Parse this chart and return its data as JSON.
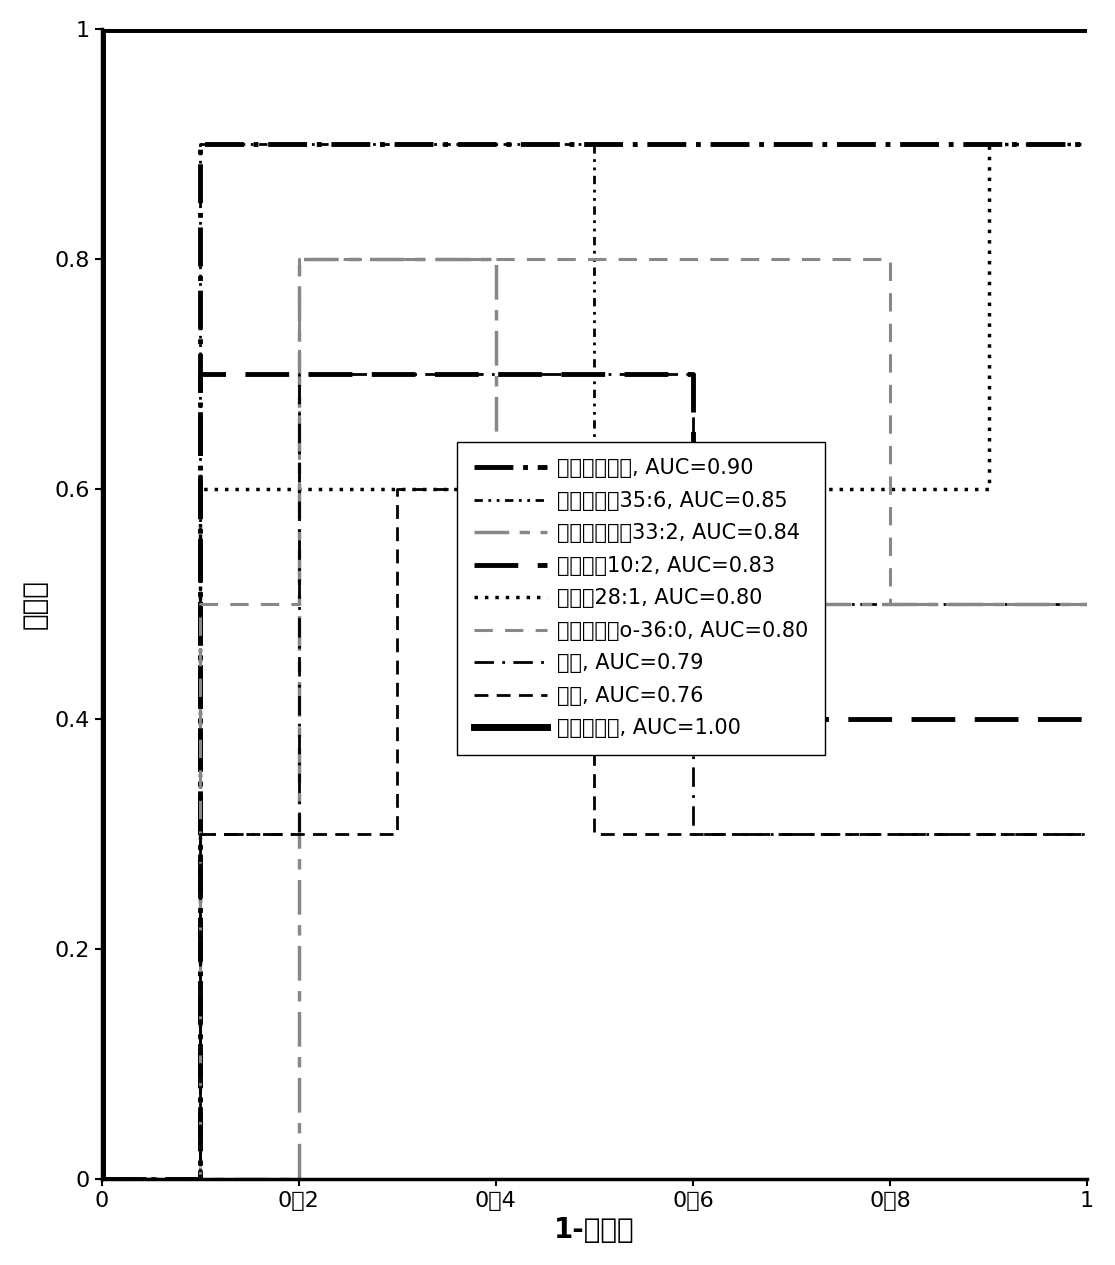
{
  "title": "",
  "xlabel": "1-特异性",
  "ylabel": "灵敏度",
  "xlim": [
    0,
    1
  ],
  "ylim": [
    0,
    1
  ],
  "xticks": [
    0,
    0.2,
    0.4,
    0.6,
    0.8,
    1
  ],
  "yticks": [
    0,
    0.2,
    0.4,
    0.6,
    0.8,
    1
  ],
  "xtick_labels": [
    "0",
    "0．2",
    "0．4",
    "0．6",
    "0．8",
    "1"
  ],
  "ytick_labels": [
    "0",
    "0.2",
    "0.4",
    "0.6",
    "0.8",
    "1"
  ],
  "curves": [
    {
      "name": "二甲基甘氨酸, AUC=0.90",
      "x": [
        0,
        0.1,
        0.1,
        1.0
      ],
      "y": [
        0,
        0,
        0.9,
        0.9
      ],
      "linestyle_tuple": [
        8,
        2,
        1,
        2
      ],
      "linewidth": 3.5,
      "color": "#000000"
    },
    {
      "name": "磷脂酰胆碱35:6, AUC=0.85",
      "x": [
        0,
        0.1,
        0.1,
        0.5,
        0.5,
        1.0
      ],
      "y": [
        0,
        0,
        0.9,
        0.9,
        0.5,
        0.5
      ],
      "linestyle_tuple": [
        3,
        2,
        1,
        2,
        1,
        2
      ],
      "linewidth": 2.0,
      "color": "#000000"
    },
    {
      "name": "磷脂酰乙醇胺33:2, AUC=0.84",
      "x": [
        0,
        0.2,
        0.2,
        0.4,
        0.4,
        1.0
      ],
      "y": [
        0,
        0,
        0.8,
        0.8,
        0.5,
        0.5
      ],
      "linestyle_tuple": [
        10,
        3,
        3,
        3
      ],
      "linewidth": 2.5,
      "color": "#888888"
    },
    {
      "name": "酰基肉碱10:2, AUC=0.83",
      "x": [
        0,
        0.1,
        0.1,
        0.6,
        0.6,
        1.0
      ],
      "y": [
        0,
        0,
        0.7,
        0.7,
        0.4,
        0.4
      ],
      "linestyle_tuple": [
        9,
        4
      ],
      "linewidth": 3.5,
      "color": "#000000"
    },
    {
      "name": "鞘磷脂28:1, AUC=0.80",
      "x": [
        0,
        0.1,
        0.1,
        0.9,
        0.9,
        1.0
      ],
      "y": [
        0,
        0,
        0.6,
        0.6,
        0.9,
        0.9
      ],
      "linestyle_tuple": [
        1,
        2
      ],
      "linewidth": 2.5,
      "color": "#000000"
    },
    {
      "name": "磷脂酰胆碱o-36:0, AUC=0.80",
      "x": [
        0,
        0.1,
        0.1,
        0.2,
        0.2,
        0.8,
        0.8,
        1.0
      ],
      "y": [
        0,
        0,
        0.5,
        0.5,
        0.8,
        0.8,
        0.5,
        0.5
      ],
      "linestyle_tuple": [
        6,
        4
      ],
      "linewidth": 2.2,
      "color": "#888888"
    },
    {
      "name": "胆碱, AUC=0.79",
      "x": [
        0,
        0.1,
        0.1,
        0.2,
        0.2,
        0.6,
        0.6,
        1.0
      ],
      "y": [
        0,
        0,
        0.3,
        0.3,
        0.7,
        0.7,
        0.3,
        0.3
      ],
      "linestyle_tuple": [
        7,
        3,
        1,
        3
      ],
      "linewidth": 2.0,
      "color": "#000000"
    },
    {
      "name": "油酸, AUC=0.76",
      "x": [
        0,
        0.1,
        0.1,
        0.3,
        0.3,
        0.5,
        0.5,
        1.0
      ],
      "y": [
        0,
        0,
        0.3,
        0.3,
        0.6,
        0.6,
        0.3,
        0.3
      ],
      "linestyle_tuple": [
        5,
        3
      ],
      "linewidth": 2.0,
      "color": "#000000"
    },
    {
      "name": "组合标志物, AUC=1.00",
      "x": [
        0,
        0.0,
        1.0
      ],
      "y": [
        0,
        1.0,
        1.0
      ],
      "linestyle_tuple": null,
      "linewidth": 5.0,
      "color": "#000000"
    }
  ],
  "legend_labels": [
    "二甲基甘氨酸, AUC=0.90",
    "磷脂酰胆碱35:6, AUC=0.85",
    "磷脂酰乙醇胺33:2, AUC=0.84",
    "酰基肉碱10:2, AUC=0.83",
    "鞘磷脂28:1, AUC=0.80",
    "磷脂酰胆碱o-36:0, AUC=0.80",
    "胆碱, AUC=0.79",
    "油酸, AUC=0.76",
    "组合标志物, AUC=1.00"
  ],
  "font_size": 15,
  "axis_label_fontsize": 20,
  "tick_fontsize": 16
}
